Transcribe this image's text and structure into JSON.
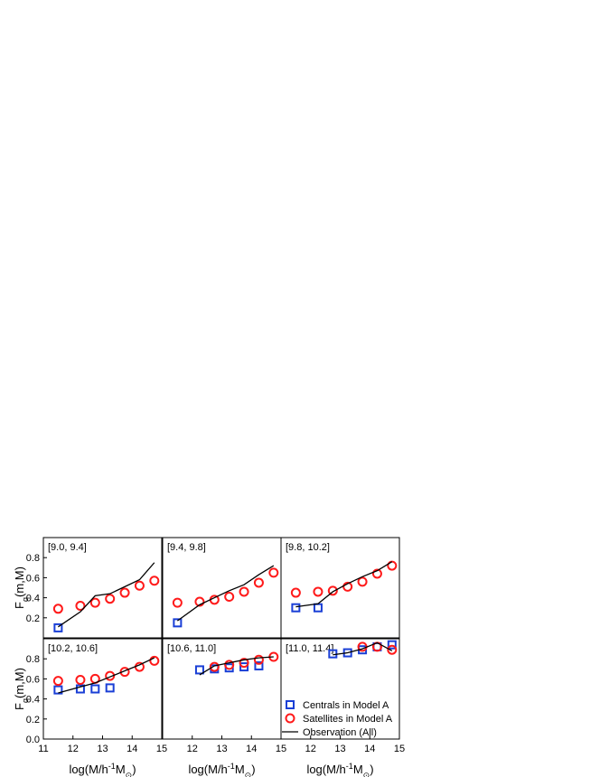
{
  "chart_data": [
    {
      "type": "scatter",
      "panel_label": "[9.0, 9.4]",
      "xlim": [
        11,
        15
      ],
      "ylim": [
        0,
        1
      ],
      "yticks": [
        0.2,
        0.4,
        0.6,
        0.8
      ],
      "ylabel": [
        {
          "text": "F"
        },
        {
          "text": "q",
          "style": "sub"
        },
        {
          "text": "(m,M)"
        }
      ],
      "x": [
        11.5,
        12.25,
        12.75,
        13.25,
        13.75,
        14.25,
        14.75
      ],
      "series": [
        {
          "marker": "square",
          "color": "#1a3fd6",
          "values": [
            0.1,
            null,
            null,
            null,
            null,
            null,
            null
          ]
        },
        {
          "marker": "circle",
          "color": "#ff1a1a",
          "values": [
            0.29,
            0.32,
            0.35,
            0.39,
            0.45,
            0.52,
            0.57
          ]
        },
        {
          "marker": "line",
          "color": "#000000",
          "values": [
            0.11,
            0.26,
            0.42,
            0.44,
            0.51,
            0.58,
            0.75
          ]
        }
      ]
    },
    {
      "type": "scatter",
      "panel_label": "[9.4, 9.8]",
      "xlim": [
        11,
        15
      ],
      "ylim": [
        0,
        1
      ],
      "x": [
        11.5,
        12.25,
        12.75,
        13.25,
        13.75,
        14.25,
        14.75
      ],
      "series": [
        {
          "marker": "square",
          "color": "#1a3fd6",
          "values": [
            0.15,
            null,
            null,
            null,
            null,
            null,
            null
          ]
        },
        {
          "marker": "circle",
          "color": "#ff1a1a",
          "values": [
            0.35,
            0.36,
            0.38,
            0.41,
            0.46,
            0.55,
            0.65
          ]
        },
        {
          "marker": "line",
          "color": "#000000",
          "values": [
            0.17,
            0.33,
            0.4,
            0.47,
            0.53,
            0.63,
            0.72
          ]
        }
      ]
    },
    {
      "type": "scatter",
      "panel_label": "[9.8, 10.2]",
      "xlim": [
        11,
        15
      ],
      "ylim": [
        0,
        1
      ],
      "x": [
        11.5,
        12.25,
        12.75,
        13.25,
        13.75,
        14.25,
        14.75
      ],
      "series": [
        {
          "marker": "square",
          "color": "#1a3fd6",
          "values": [
            0.3,
            0.3,
            null,
            null,
            null,
            null,
            null
          ]
        },
        {
          "marker": "circle",
          "color": "#ff1a1a",
          "values": [
            0.45,
            0.46,
            0.47,
            0.51,
            0.56,
            0.64,
            0.72
          ]
        },
        {
          "marker": "line",
          "color": "#000000",
          "values": [
            0.31,
            0.34,
            0.46,
            0.54,
            0.61,
            0.67,
            0.76
          ]
        }
      ]
    },
    {
      "type": "scatter",
      "panel_label": "[10.2, 10.6]",
      "xlim": [
        11,
        15
      ],
      "ylim": [
        0,
        1
      ],
      "yticks": [
        {
          "value": 0,
          "label": "0.0"
        },
        0.2,
        0.4,
        0.6,
        0.8
      ],
      "xticks": [
        11,
        12,
        13,
        14,
        15
      ],
      "ylabel": [
        {
          "text": "F"
        },
        {
          "text": "q",
          "style": "sub"
        },
        {
          "text": "(m,M)"
        }
      ],
      "xlabel": [
        {
          "text": "log(M/h"
        },
        {
          "text": "-1",
          "style": "super"
        },
        {
          "text": "M"
        },
        {
          "text": "⊙",
          "style": "sub"
        },
        {
          "text": ")"
        }
      ],
      "x": [
        11.5,
        12.25,
        12.75,
        13.25,
        13.75,
        14.25,
        14.75
      ],
      "series": [
        {
          "marker": "square",
          "color": "#1a3fd6",
          "values": [
            0.49,
            0.5,
            0.5,
            0.51,
            null,
            null,
            null
          ]
        },
        {
          "marker": "circle",
          "color": "#ff1a1a",
          "values": [
            0.58,
            0.59,
            0.6,
            0.63,
            0.67,
            0.72,
            0.78
          ]
        },
        {
          "marker": "line",
          "color": "#000000",
          "values": [
            0.46,
            0.52,
            0.56,
            0.62,
            0.68,
            0.74,
            0.81
          ]
        }
      ]
    },
    {
      "type": "scatter",
      "panel_label": "[10.6, 11.0]",
      "xlim": [
        11,
        15
      ],
      "ylim": [
        0,
        1
      ],
      "xticks": [
        12,
        13,
        14,
        15
      ],
      "xlabel": [
        {
          "text": "log(M/h"
        },
        {
          "text": "-1",
          "style": "super"
        },
        {
          "text": "M"
        },
        {
          "text": "⊙",
          "style": "sub"
        },
        {
          "text": ")"
        }
      ],
      "x": [
        11.5,
        12.25,
        12.75,
        13.25,
        13.75,
        14.25,
        14.75
      ],
      "series": [
        {
          "marker": "square",
          "color": "#1a3fd6",
          "values": [
            null,
            0.69,
            0.7,
            0.71,
            0.72,
            0.73,
            null
          ]
        },
        {
          "marker": "circle",
          "color": "#ff1a1a",
          "values": [
            null,
            null,
            0.72,
            0.74,
            0.76,
            0.79,
            0.82
          ]
        },
        {
          "marker": "line",
          "color": "#000000",
          "values": [
            null,
            0.64,
            0.73,
            0.76,
            0.79,
            0.81,
            0.82
          ]
        }
      ]
    },
    {
      "type": "scatter",
      "panel_label": "[11.0, 11.4]",
      "xlim": [
        11,
        15
      ],
      "ylim": [
        0,
        1
      ],
      "xticks": [
        12,
        13,
        14,
        15
      ],
      "legend": "lower right",
      "xlabel": [
        {
          "text": "log(M/h"
        },
        {
          "text": "-1",
          "style": "super"
        },
        {
          "text": "M"
        },
        {
          "text": "⊙",
          "style": "sub"
        },
        {
          "text": ")"
        }
      ],
      "x": [
        11.5,
        12.25,
        12.75,
        13.25,
        13.75,
        14.25,
        14.75
      ],
      "series": [
        {
          "name": "Centrals in Model A",
          "marker": "square",
          "color": "#1a3fd6",
          "values": [
            null,
            null,
            0.85,
            0.86,
            0.89,
            0.92,
            0.94
          ]
        },
        {
          "name": "Satellites in Model A",
          "marker": "circle",
          "color": "#ff1a1a",
          "values": [
            null,
            null,
            null,
            null,
            0.92,
            0.92,
            0.89
          ]
        },
        {
          "name": "Observation (All)",
          "marker": "line",
          "color": "#000000",
          "values": [
            null,
            null,
            0.84,
            0.86,
            0.9,
            0.96,
            0.88
          ]
        }
      ]
    }
  ]
}
